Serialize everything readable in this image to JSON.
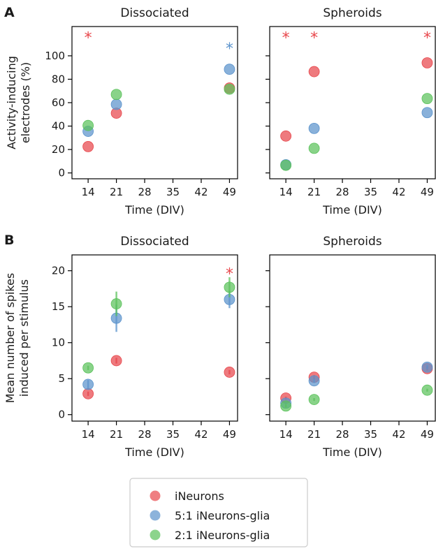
{
  "colors": {
    "iNeurons": "#e8474c",
    "5:1 iNeurons-glia": "#5b93cc",
    "2:1 iNeurons-glia": "#5bc25b"
  },
  "panel_labels": [
    "A",
    "B"
  ],
  "legend": {
    "entries": [
      "iNeurons",
      "5:1 iNeurons-glia",
      "2:1 iNeurons-glia"
    ]
  },
  "chart_data": [
    {
      "type": "scatter",
      "panel": "A",
      "title": "Dissociated",
      "xlabel": "Time (DIV)",
      "ylabel": [
        "Activity-inducing",
        "electrodes (%)"
      ],
      "xticks": [
        14,
        21,
        28,
        35,
        42,
        49
      ],
      "yticks": [
        0,
        20,
        40,
        60,
        80,
        100
      ],
      "xlim": [
        10,
        51
      ],
      "ylim": [
        -5,
        125
      ],
      "series": [
        {
          "name": "iNeurons",
          "x": [
            14,
            21,
            49
          ],
          "y": [
            22.5,
            51,
            72.5
          ]
        },
        {
          "name": "5:1 iNeurons-glia",
          "x": [
            14,
            21,
            49
          ],
          "y": [
            35.5,
            58.5,
            88.5
          ]
        },
        {
          "name": "2:1 iNeurons-glia",
          "x": [
            14,
            21,
            49
          ],
          "y": [
            40.5,
            67,
            71.5
          ]
        }
      ],
      "annotations": [
        {
          "text": "*",
          "x": 14,
          "y": 118,
          "series": "iNeurons"
        },
        {
          "text": "*",
          "x": 49,
          "y": 109,
          "series": "5:1 iNeurons-glia"
        }
      ]
    },
    {
      "type": "scatter",
      "panel": "A",
      "title": "Spheroids",
      "xlabel": "Time (DIV)",
      "ylabel": [],
      "xticks": [
        14,
        21,
        28,
        35,
        42,
        49
      ],
      "yticks": [
        0,
        20,
        40,
        60,
        80,
        100
      ],
      "xlim": [
        10,
        51
      ],
      "ylim": [
        -5,
        125
      ],
      "series": [
        {
          "name": "iNeurons",
          "x": [
            14,
            21,
            49
          ],
          "y": [
            31.5,
            86.5,
            94
          ]
        },
        {
          "name": "5:1 iNeurons-glia",
          "x": [
            14,
            21,
            49
          ],
          "y": [
            7,
            38,
            51.5
          ]
        },
        {
          "name": "2:1 iNeurons-glia",
          "x": [
            14,
            21,
            49
          ],
          "y": [
            6.5,
            21,
            63.5
          ]
        }
      ],
      "annotations": [
        {
          "text": "*",
          "x": 14,
          "y": 118,
          "series": "iNeurons"
        },
        {
          "text": "*",
          "x": 21,
          "y": 118,
          "series": "iNeurons"
        },
        {
          "text": "*",
          "x": 49,
          "y": 118,
          "series": "iNeurons"
        }
      ]
    },
    {
      "type": "scatter",
      "panel": "B",
      "title": "Dissociated",
      "xlabel": "Time (DIV)",
      "ylabel": [
        "Mean number of spikes",
        "induced per stimulus"
      ],
      "xticks": [
        14,
        21,
        28,
        35,
        42,
        49
      ],
      "yticks": [
        0,
        5,
        10,
        15,
        20
      ],
      "xlim": [
        10,
        51
      ],
      "ylim": [
        -0.9,
        22.2
      ],
      "series": [
        {
          "name": "iNeurons",
          "x": [
            14,
            21,
            49
          ],
          "y": [
            2.9,
            7.5,
            5.9
          ],
          "err": [
            0.3,
            0.4,
            0.3
          ]
        },
        {
          "name": "5:1 iNeurons-glia",
          "x": [
            14,
            21,
            49
          ],
          "y": [
            4.2,
            13.4,
            16.0
          ],
          "err": [
            0.6,
            1.9,
            1.2
          ]
        },
        {
          "name": "2:1 iNeurons-glia",
          "x": [
            14,
            21,
            49
          ],
          "y": [
            6.5,
            15.4,
            17.7
          ],
          "err": [
            0.3,
            1.7,
            1.4
          ]
        }
      ],
      "annotations": [
        {
          "text": "*",
          "x": 49,
          "y": 20.0,
          "series": "iNeurons"
        }
      ]
    },
    {
      "type": "scatter",
      "panel": "B",
      "title": "Spheroids",
      "xlabel": "Time (DIV)",
      "ylabel": [],
      "xticks": [
        14,
        21,
        28,
        35,
        42,
        49
      ],
      "yticks": [
        0,
        5,
        10,
        15,
        20
      ],
      "xlim": [
        10,
        51
      ],
      "ylim": [
        -0.9,
        22.2
      ],
      "series": [
        {
          "name": "iNeurons",
          "x": [
            14,
            21,
            49
          ],
          "y": [
            2.3,
            5.2,
            6.4
          ],
          "err": [
            0.2,
            0.3,
            0.3
          ]
        },
        {
          "name": "5:1 iNeurons-glia",
          "x": [
            14,
            21,
            49
          ],
          "y": [
            1.6,
            4.7,
            6.6
          ],
          "err": [
            0.2,
            0.3,
            0.3
          ]
        },
        {
          "name": "2:1 iNeurons-glia",
          "x": [
            14,
            21,
            49
          ],
          "y": [
            1.2,
            2.1,
            3.4
          ],
          "err": [
            0.2,
            0.2,
            0.2
          ]
        }
      ],
      "annotations": []
    }
  ]
}
